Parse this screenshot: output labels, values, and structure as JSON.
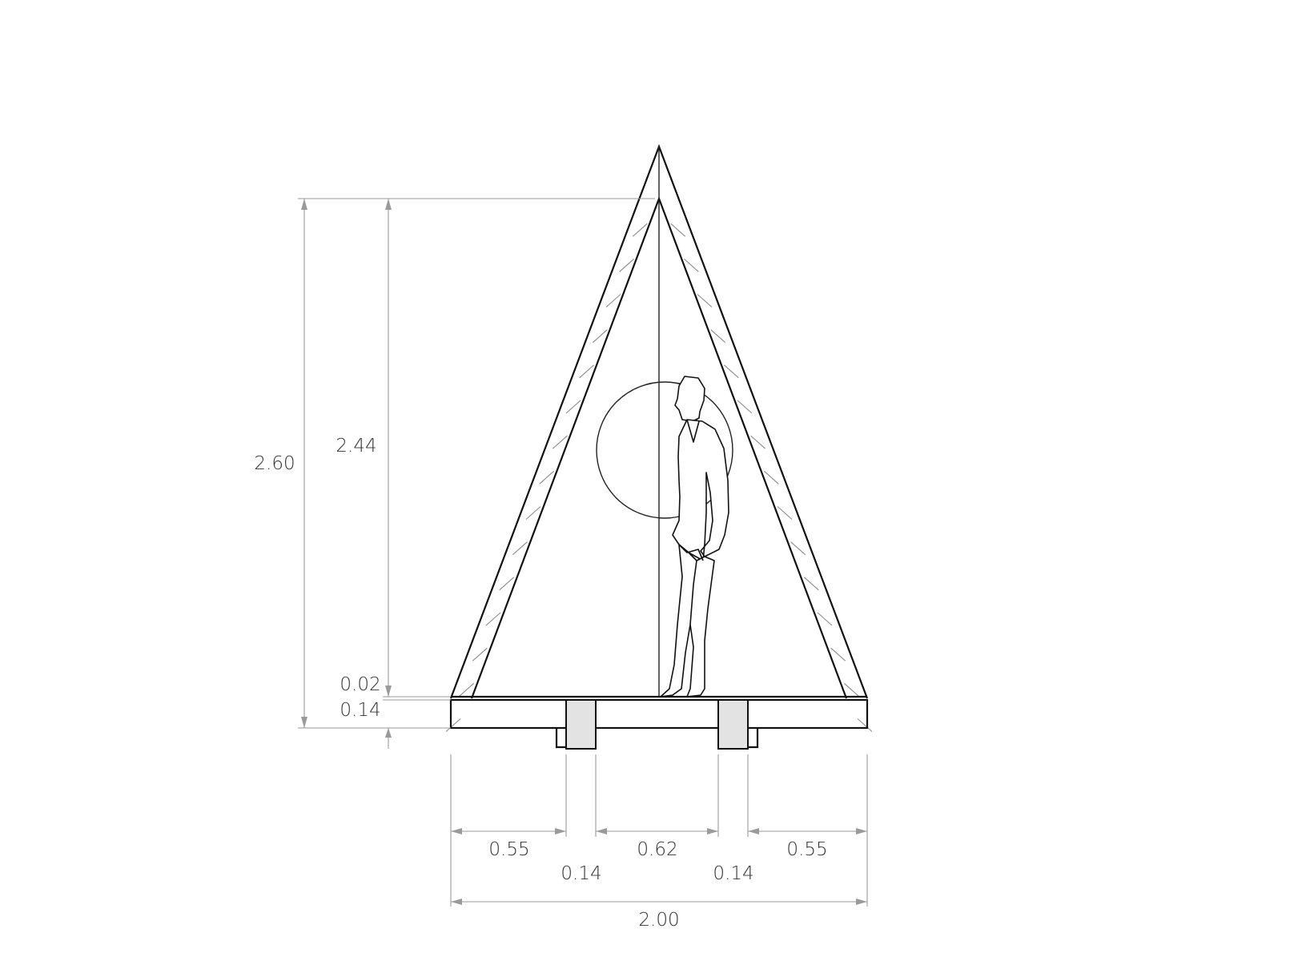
{
  "colors": {
    "outline": "#111111",
    "dimension_line": "#9a9a9a",
    "dimension_text": "#333333",
    "beam_fill": "#e3e3e3",
    "background": "#ffffff"
  },
  "dimensions": {
    "overall_height": "2.60",
    "inner_height": "2.44",
    "floor_gap": "0.02",
    "floor_thickness": "0.14",
    "left_overhang": "0.55",
    "center_span": "0.62",
    "right_overhang": "0.55",
    "left_beam_width": "0.14",
    "right_beam_width": "0.14",
    "overall_width": "2.00"
  }
}
